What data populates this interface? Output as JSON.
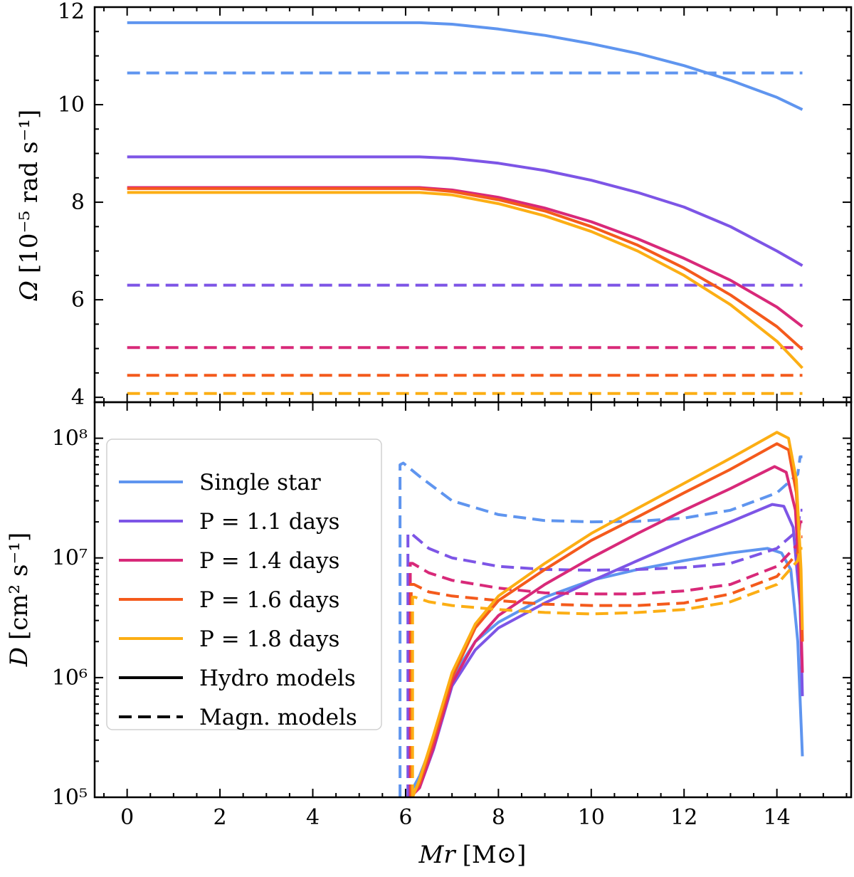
{
  "colors": {
    "single": "#5f95ef",
    "p11": "#7d55e6",
    "p14": "#d82979",
    "p16": "#f45a1c",
    "p18": "#fcae14"
  },
  "chart_data": [
    {
      "type": "line",
      "panel": "top",
      "ylabel_symbol": "Ω",
      "ylabel_unit": "[10⁻⁵ rad s⁻¹]",
      "xlim": [
        -0.7,
        15.6
      ],
      "ylim": [
        3.9,
        12.0
      ],
      "yticks": [
        4,
        6,
        8,
        10,
        12
      ],
      "xticks": [
        0,
        2,
        4,
        6,
        8,
        10,
        12,
        14
      ],
      "series": [
        {
          "key": "single",
          "name": "Single star",
          "model": "hydro",
          "x": [
            0,
            6.3,
            7,
            8,
            9,
            10,
            11,
            12,
            13,
            14,
            14.55
          ],
          "y": [
            11.68,
            11.68,
            11.65,
            11.55,
            11.42,
            11.25,
            11.05,
            10.8,
            10.5,
            10.15,
            9.9
          ]
        },
        {
          "key": "single",
          "name": "Single star",
          "model": "magnetic",
          "x": [
            0,
            14.55
          ],
          "y": [
            10.65,
            10.65
          ]
        },
        {
          "key": "p11",
          "name": "P = 1.1 days",
          "model": "hydro",
          "x": [
            0,
            6.3,
            7,
            8,
            9,
            10,
            11,
            12,
            13,
            14,
            14.55
          ],
          "y": [
            8.93,
            8.93,
            8.9,
            8.8,
            8.65,
            8.45,
            8.2,
            7.9,
            7.5,
            7.0,
            6.7
          ]
        },
        {
          "key": "p11",
          "name": "P = 1.1 days",
          "model": "magnetic",
          "x": [
            0,
            14.55
          ],
          "y": [
            6.3,
            6.3
          ]
        },
        {
          "key": "p14",
          "name": "P = 1.4 days",
          "model": "hydro",
          "x": [
            0,
            6.3,
            7,
            8,
            9,
            10,
            11,
            12,
            13,
            14,
            14.55
          ],
          "y": [
            8.3,
            8.3,
            8.25,
            8.1,
            7.88,
            7.6,
            7.25,
            6.85,
            6.4,
            5.85,
            5.45
          ]
        },
        {
          "key": "p14",
          "name": "P = 1.4 days",
          "model": "magnetic",
          "x": [
            0,
            14.55
          ],
          "y": [
            5.02,
            5.02
          ]
        },
        {
          "key": "p16",
          "name": "P = 1.6 days",
          "model": "hydro",
          "x": [
            0,
            6.3,
            7,
            8,
            9,
            10,
            11,
            12,
            13,
            14,
            14.55
          ],
          "y": [
            8.28,
            8.28,
            8.22,
            8.05,
            7.82,
            7.5,
            7.12,
            6.65,
            6.1,
            5.45,
            4.98
          ]
        },
        {
          "key": "p16",
          "name": "P = 1.6 days",
          "model": "magnetic",
          "x": [
            0,
            14.55
          ],
          "y": [
            4.45,
            4.45
          ]
        },
        {
          "key": "p18",
          "name": "P = 1.8 days",
          "model": "hydro",
          "x": [
            0,
            6.3,
            7,
            8,
            9,
            10,
            11,
            12,
            13,
            14,
            14.55
          ],
          "y": [
            8.2,
            8.2,
            8.15,
            7.97,
            7.72,
            7.4,
            7.0,
            6.5,
            5.9,
            5.15,
            4.6
          ]
        },
        {
          "key": "p18",
          "name": "P = 1.8 days",
          "model": "magnetic",
          "x": [
            0,
            14.55
          ],
          "y": [
            4.08,
            4.08
          ]
        }
      ]
    },
    {
      "type": "line",
      "panel": "bottom",
      "yscale": "log",
      "ylabel_symbol": "D",
      "ylabel_unit": "[cm² s⁻¹]",
      "xlabel_symbol": "Mr",
      "xlabel_unit": "[M⊙]",
      "xlim": [
        -0.7,
        15.6
      ],
      "ylim": [
        100000,
        200000000
      ],
      "ytick_labels": [
        "10⁵",
        "10⁶",
        "10⁷",
        "10⁸"
      ],
      "yticks": [
        100000,
        1000000,
        10000000,
        100000000
      ],
      "xticks": [
        0,
        2,
        4,
        6,
        8,
        10,
        12,
        14
      ],
      "xtick_labels": [
        "0",
        "2",
        "4",
        "6",
        "8",
        "10",
        "12",
        "14"
      ],
      "series": [
        {
          "key": "single",
          "name": "Single star",
          "model": "hydro",
          "x": [
            6.05,
            6.3,
            6.6,
            7,
            7.5,
            8,
            9,
            10,
            11,
            12,
            13,
            13.8,
            14.1,
            14.3,
            14.45,
            14.55
          ],
          "y": [
            100000,
            150000,
            300000,
            1000000,
            2000000,
            2900000,
            4700000,
            6500000,
            8000000,
            9500000,
            11000000,
            12000000,
            11000000,
            8000000,
            2000000,
            220000
          ]
        },
        {
          "key": "single",
          "name": "Single star",
          "model": "magnetic",
          "x": [
            5.88,
            5.88,
            5.95,
            6.3,
            7,
            8,
            9,
            10,
            11,
            12,
            13,
            14,
            14.45,
            14.5,
            14.55
          ],
          "y": [
            100000,
            60000000,
            62000000,
            48000000,
            30000000,
            23000000,
            20500000,
            20000000,
            20200000,
            21500000,
            25000000,
            35000000,
            50000000,
            70000000,
            70000000
          ]
        },
        {
          "key": "p11",
          "name": "P = 1.1 days",
          "model": "hydro",
          "x": [
            6.08,
            6.3,
            6.6,
            7,
            7.5,
            8,
            9,
            10,
            11,
            12,
            13,
            13.9,
            14.15,
            14.35,
            14.5,
            14.55
          ],
          "y": [
            100000,
            120000,
            250000,
            850000,
            1700000,
            2600000,
            4200000,
            6400000,
            9500000,
            14000000,
            20000000,
            28000000,
            27000000,
            18000000,
            4000000,
            700000
          ]
        },
        {
          "key": "p11",
          "name": "P = 1.1 days",
          "model": "magnetic",
          "x": [
            6.05,
            6.05,
            6.12,
            6.5,
            7,
            8,
            9,
            10,
            11,
            12,
            13,
            14,
            14.45,
            14.5,
            14.55
          ],
          "y": [
            100000,
            16000000,
            16000000,
            12000000,
            10000000,
            8500000,
            8000000,
            7900000,
            8000000,
            8300000,
            9000000,
            12000000,
            17000000,
            25000000,
            25000000
          ]
        },
        {
          "key": "p14",
          "name": "P = 1.4 days",
          "model": "hydro",
          "x": [
            6.1,
            6.3,
            6.6,
            7,
            7.5,
            8,
            9,
            10,
            11,
            12,
            13,
            13.95,
            14.2,
            14.4,
            14.5,
            14.55
          ],
          "y": [
            100000,
            120000,
            260000,
            900000,
            2000000,
            3300000,
            6000000,
            10000000,
            16000000,
            25000000,
            38000000,
            58000000,
            52000000,
            25000000,
            5000000,
            1100000
          ]
        },
        {
          "key": "p14",
          "name": "P = 1.4 days",
          "model": "magnetic",
          "x": [
            6.1,
            6.1,
            6.15,
            6.5,
            7,
            8,
            9,
            10,
            11,
            12,
            13,
            14,
            14.45,
            14.5,
            14.55
          ],
          "y": [
            100000,
            9000000,
            9000000,
            7500000,
            6500000,
            5600000,
            5100000,
            5000000,
            5000000,
            5300000,
            6000000,
            8500000,
            13000000,
            20000000,
            20000000
          ]
        },
        {
          "key": "p16",
          "name": "P = 1.6 days",
          "model": "hydro",
          "x": [
            6.12,
            6.3,
            6.6,
            7,
            7.5,
            8,
            9,
            10,
            11,
            12,
            13,
            14,
            14.25,
            14.42,
            14.52,
            14.55
          ],
          "y": [
            100000,
            130000,
            300000,
            1000000,
            2600000,
            4400000,
            8000000,
            14000000,
            22000000,
            35000000,
            55000000,
            90000000,
            80000000,
            35000000,
            6000000,
            2000000
          ]
        },
        {
          "key": "p16",
          "name": "P = 1.6 days",
          "model": "magnetic",
          "x": [
            6.12,
            6.12,
            6.18,
            6.5,
            7,
            8,
            9,
            10,
            11,
            12,
            13,
            14,
            14.45,
            14.5,
            14.55
          ],
          "y": [
            100000,
            6000000,
            6000000,
            5200000,
            4800000,
            4400000,
            4100000,
            4000000,
            4000000,
            4200000,
            5000000,
            7000000,
            11000000,
            15000000,
            15000000
          ]
        },
        {
          "key": "p18",
          "name": "P = 1.8 days",
          "model": "hydro",
          "x": [
            6.15,
            6.3,
            6.6,
            7,
            7.5,
            8,
            9,
            10,
            11,
            12,
            13,
            14,
            14.25,
            14.42,
            14.52,
            14.55
          ],
          "y": [
            100000,
            140000,
            330000,
            1100000,
            2800000,
            4800000,
            9000000,
            16000000,
            26000000,
            42000000,
            68000000,
            112000000,
            100000000,
            45000000,
            8000000,
            2500000
          ]
        },
        {
          "key": "p18",
          "name": "P = 1.8 days",
          "model": "magnetic",
          "x": [
            6.15,
            6.15,
            6.2,
            6.5,
            7,
            8,
            9,
            10,
            11,
            12,
            13,
            14,
            14.45,
            14.5,
            14.55
          ],
          "y": [
            100000,
            4700000,
            4700000,
            4300000,
            4000000,
            3700000,
            3500000,
            3400000,
            3500000,
            3700000,
            4300000,
            6000000,
            9500000,
            12000000,
            12000000
          ]
        }
      ]
    }
  ],
  "legend": {
    "placement": "left, bottom panel",
    "entries": [
      {
        "key": "single",
        "label": "Single star",
        "style": "solid"
      },
      {
        "key": "p11",
        "label": "P = 1.1 days",
        "style": "solid"
      },
      {
        "key": "p14",
        "label": "P = 1.4 days",
        "style": "solid"
      },
      {
        "key": "p16",
        "label": "P = 1.6 days",
        "style": "solid"
      },
      {
        "key": "p18",
        "label": "P = 1.8 days",
        "style": "solid"
      },
      {
        "key": "black",
        "label": "Hydro models",
        "style": "solid"
      },
      {
        "key": "black",
        "label": "Magn. models",
        "style": "dashed"
      }
    ]
  }
}
